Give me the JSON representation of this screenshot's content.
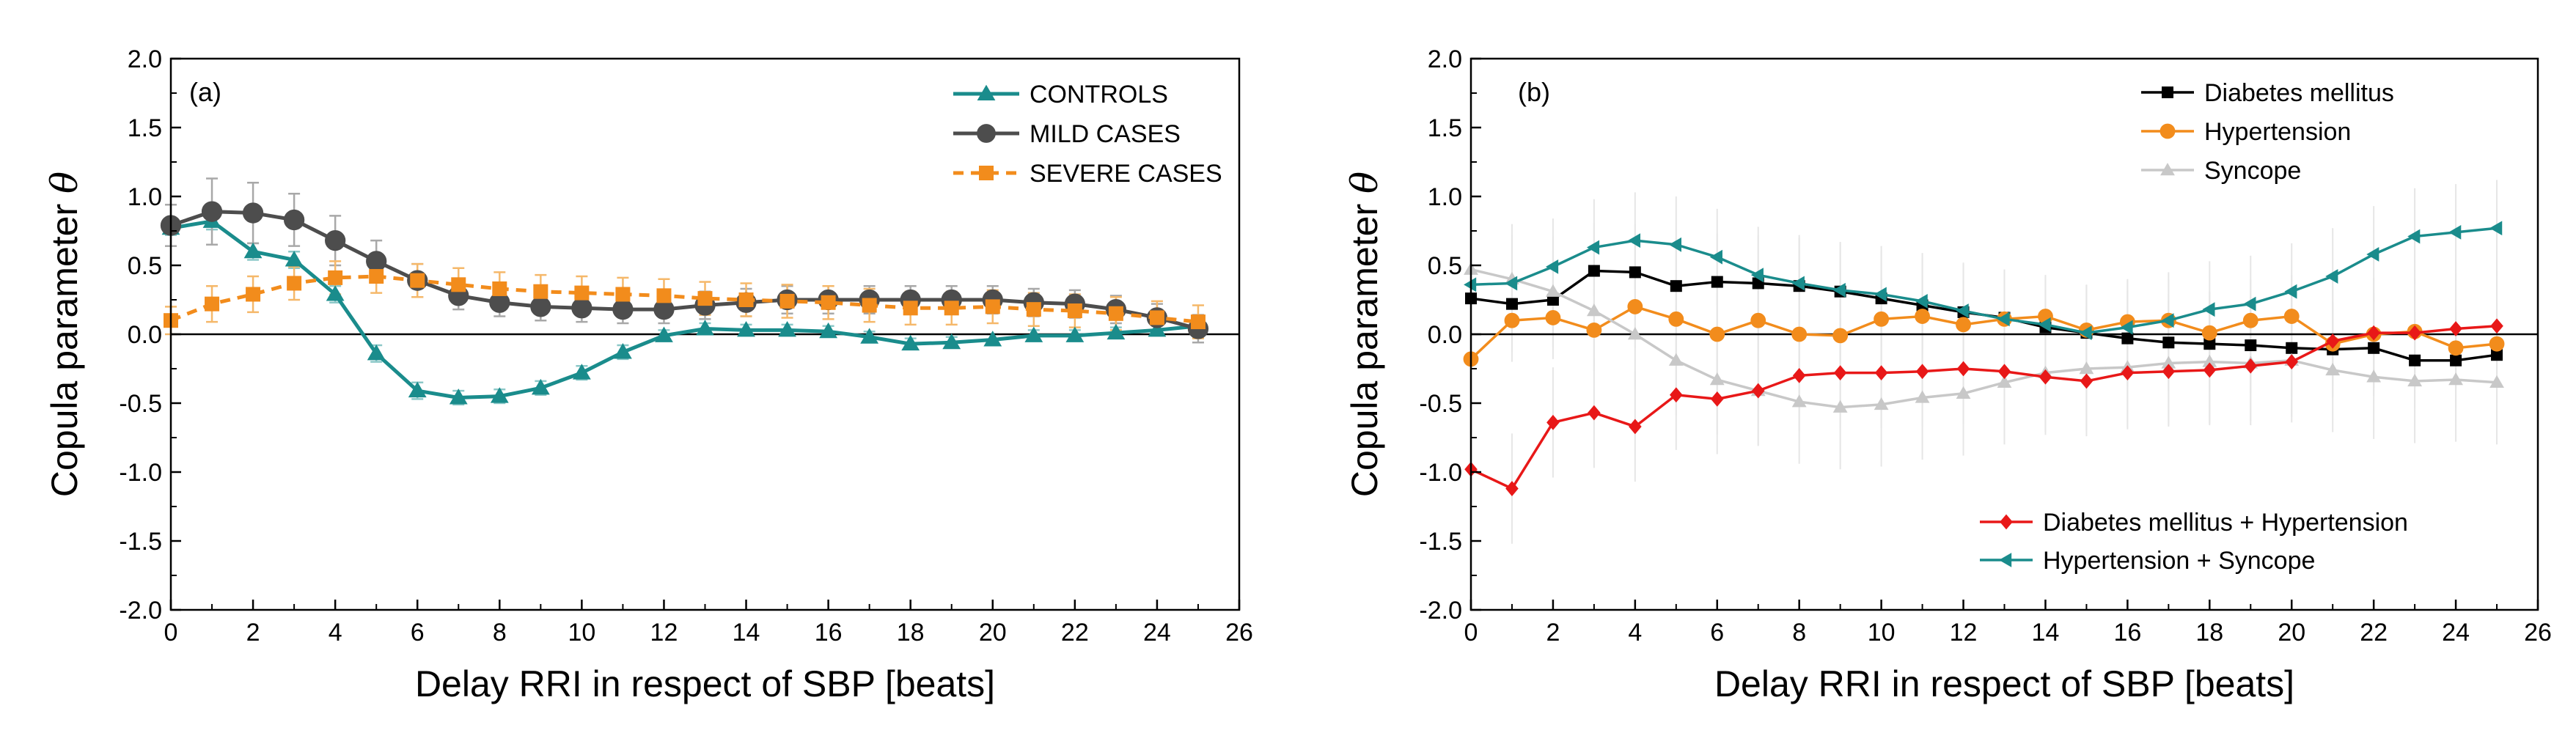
{
  "chart_data": [
    {
      "type": "line",
      "panel_label": "(a)",
      "xlabel": "Delay RRI in respect of SBP [beats]",
      "ylabel": "Copula parameter",
      "ylabel_symbol": "θ",
      "xlim": [
        0,
        26
      ],
      "ylim": [
        -2.0,
        2.0
      ],
      "x_ticks": [
        0,
        2,
        4,
        6,
        8,
        10,
        12,
        14,
        16,
        18,
        20,
        22,
        24,
        26
      ],
      "y_ticks": [
        -2.0,
        -1.5,
        -1.0,
        -0.5,
        0.0,
        0.5,
        1.0,
        1.5,
        2.0
      ],
      "x_tick_labels": [
        "0",
        "2",
        "4",
        "6",
        "8",
        "10",
        "12",
        "14",
        "16",
        "18",
        "20",
        "22",
        "24",
        "26"
      ],
      "y_tick_labels": [
        "-2.0",
        "-1.5",
        "-1.0",
        "-0.5",
        "0.0",
        "0.5",
        "1.0",
        "1.5",
        "2.0"
      ],
      "zero_line": true,
      "legend_position": "top-right",
      "series": [
        {
          "name": "CONTROLS",
          "color": "#1a8c8c",
          "marker": "triangle-up",
          "dash": "solid",
          "x": [
            0,
            1,
            2,
            3,
            4,
            5,
            6,
            7,
            8,
            9,
            10,
            11,
            12,
            13,
            14,
            15,
            16,
            17,
            18,
            19,
            20,
            21,
            22,
            23,
            24,
            25
          ],
          "values": [
            0.77,
            0.82,
            0.6,
            0.54,
            0.29,
            -0.14,
            -0.41,
            -0.46,
            -0.45,
            -0.39,
            -0.28,
            -0.13,
            -0.01,
            0.04,
            0.03,
            0.03,
            0.02,
            -0.02,
            -0.07,
            -0.06,
            -0.04,
            -0.01,
            -0.01,
            0.01,
            0.03,
            0.06
          ],
          "errors": [
            0.05,
            0.06,
            0.06,
            0.06,
            0.06,
            0.06,
            0.06,
            0.05,
            0.05,
            0.05,
            0.05,
            0.05,
            0.04,
            0.04,
            0.04,
            0.04,
            0.04,
            0.04,
            0.04,
            0.04,
            0.04,
            0.04,
            0.04,
            0.04,
            0.04,
            0.04
          ]
        },
        {
          "name": "MILD CASES",
          "color": "#4d4d4d",
          "marker": "circle",
          "dash": "solid",
          "x": [
            0,
            1,
            2,
            3,
            4,
            5,
            6,
            7,
            8,
            9,
            10,
            11,
            12,
            13,
            14,
            15,
            16,
            17,
            18,
            19,
            20,
            21,
            22,
            23,
            24,
            25
          ],
          "values": [
            0.79,
            0.89,
            0.88,
            0.83,
            0.68,
            0.53,
            0.39,
            0.28,
            0.23,
            0.2,
            0.19,
            0.18,
            0.18,
            0.21,
            0.23,
            0.25,
            0.25,
            0.25,
            0.25,
            0.25,
            0.25,
            0.23,
            0.22,
            0.18,
            0.12,
            0.04
          ],
          "errors": [
            0.15,
            0.24,
            0.22,
            0.19,
            0.18,
            0.15,
            0.12,
            0.1,
            0.1,
            0.1,
            0.1,
            0.1,
            0.1,
            0.1,
            0.1,
            0.1,
            0.1,
            0.1,
            0.1,
            0.1,
            0.1,
            0.1,
            0.1,
            0.1,
            0.1,
            0.1
          ]
        },
        {
          "name": "SEVERE CASES",
          "color": "#f28c1c",
          "marker": "square",
          "dash": "dashed",
          "x": [
            0,
            1,
            2,
            3,
            4,
            5,
            6,
            7,
            8,
            9,
            10,
            11,
            12,
            13,
            14,
            15,
            16,
            17,
            18,
            19,
            20,
            21,
            22,
            23,
            24,
            25
          ],
          "values": [
            0.1,
            0.22,
            0.29,
            0.37,
            0.41,
            0.42,
            0.39,
            0.36,
            0.33,
            0.31,
            0.3,
            0.29,
            0.28,
            0.26,
            0.25,
            0.24,
            0.23,
            0.21,
            0.19,
            0.19,
            0.2,
            0.18,
            0.17,
            0.15,
            0.12,
            0.09
          ],
          "errors": [
            0.1,
            0.13,
            0.13,
            0.12,
            0.12,
            0.12,
            0.12,
            0.12,
            0.12,
            0.12,
            0.12,
            0.12,
            0.12,
            0.12,
            0.12,
            0.12,
            0.12,
            0.12,
            0.12,
            0.12,
            0.12,
            0.12,
            0.12,
            0.12,
            0.12,
            0.12
          ]
        }
      ]
    },
    {
      "type": "line",
      "panel_label": "(b)",
      "xlabel": "Delay RRI in respect of SBP [beats]",
      "ylabel": "Copula parameter",
      "ylabel_symbol": "θ",
      "xlim": [
        0,
        26
      ],
      "ylim": [
        -2.0,
        2.0
      ],
      "x_ticks": [
        0,
        2,
        4,
        6,
        8,
        10,
        12,
        14,
        16,
        18,
        20,
        22,
        24,
        26
      ],
      "y_ticks": [
        -2.0,
        -1.5,
        -1.0,
        -0.5,
        0.0,
        0.5,
        1.0,
        1.5,
        2.0
      ],
      "x_tick_labels": [
        "0",
        "2",
        "4",
        "6",
        "8",
        "10",
        "12",
        "14",
        "16",
        "18",
        "20",
        "22",
        "24",
        "26"
      ],
      "y_tick_labels": [
        "-2.0",
        "-1.5",
        "-1.0",
        "-0.5",
        "0.0",
        "0.5",
        "1.0",
        "1.5",
        "2.0"
      ],
      "zero_line": true,
      "legend_position": "top-right and bottom-right",
      "series": [
        {
          "name": "Diabetes mellitus",
          "color": "#000000",
          "marker": "square",
          "dash": "solid",
          "legend_group": "top",
          "x": [
            0,
            1,
            2,
            3,
            4,
            5,
            6,
            7,
            8,
            9,
            10,
            11,
            12,
            13,
            14,
            15,
            16,
            17,
            18,
            19,
            20,
            21,
            22,
            23,
            24,
            25
          ],
          "values": [
            0.26,
            0.22,
            0.25,
            0.46,
            0.45,
            0.35,
            0.38,
            0.37,
            0.35,
            0.31,
            0.26,
            0.21,
            0.16,
            0.12,
            0.05,
            0.01,
            -0.03,
            -0.06,
            -0.07,
            -0.08,
            -0.1,
            -0.11,
            -0.1,
            -0.19,
            -0.19,
            -0.15
          ],
          "errors": [
            0.35,
            0.35,
            0.35,
            0.35,
            0.35,
            0.35,
            0.35,
            0.35,
            0.35,
            0.35,
            0.35,
            0.35,
            0.35,
            0.35,
            0.35,
            0.35,
            0.35,
            0.35,
            0.35,
            0.35,
            0.35,
            0.35,
            0.35,
            0.35,
            0.35,
            0.35
          ]
        },
        {
          "name": "Hypertension",
          "color": "#f28c1c",
          "marker": "circle",
          "dash": "solid",
          "legend_group": "top",
          "x": [
            0,
            1,
            2,
            3,
            4,
            5,
            6,
            7,
            8,
            9,
            10,
            11,
            12,
            13,
            14,
            15,
            16,
            17,
            18,
            19,
            20,
            21,
            22,
            23,
            24,
            25
          ],
          "values": [
            -0.18,
            0.1,
            0.12,
            0.03,
            0.2,
            0.11,
            0.0,
            0.1,
            0.0,
            -0.01,
            0.11,
            0.13,
            0.07,
            0.11,
            0.13,
            0.03,
            0.09,
            0.1,
            0.01,
            0.1,
            0.13,
            -0.07,
            0.0,
            0.02,
            -0.1,
            -0.07
          ],
          "errors": [
            0.3,
            0.3,
            0.3,
            0.3,
            0.3,
            0.3,
            0.3,
            0.3,
            0.3,
            0.3,
            0.3,
            0.3,
            0.3,
            0.3,
            0.3,
            0.3,
            0.3,
            0.3,
            0.3,
            0.3,
            0.3,
            0.3,
            0.3,
            0.3,
            0.3,
            0.3
          ]
        },
        {
          "name": "Syncope",
          "color": "#c8c8c8",
          "marker": "triangle-up",
          "dash": "solid",
          "legend_group": "top",
          "x": [
            0,
            1,
            2,
            3,
            4,
            5,
            6,
            7,
            8,
            9,
            10,
            11,
            12,
            13,
            14,
            15,
            16,
            17,
            18,
            19,
            20,
            21,
            22,
            23,
            24,
            25
          ],
          "values": [
            0.47,
            0.4,
            0.31,
            0.17,
            0.0,
            -0.19,
            -0.33,
            -0.41,
            -0.49,
            -0.53,
            -0.51,
            -0.46,
            -0.43,
            -0.35,
            -0.28,
            -0.25,
            -0.24,
            -0.21,
            -0.2,
            -0.21,
            -0.19,
            -0.26,
            -0.31,
            -0.34,
            -0.33,
            -0.35
          ],
          "errors": [
            0.35,
            0.4,
            0.4,
            0.4,
            0.4,
            0.4,
            0.4,
            0.4,
            0.45,
            0.45,
            0.45,
            0.45,
            0.45,
            0.45,
            0.45,
            0.45,
            0.45,
            0.45,
            0.45,
            0.45,
            0.45,
            0.45,
            0.45,
            0.45,
            0.45,
            0.45
          ]
        },
        {
          "name": "Diabetes mellitus + Hypertension",
          "color": "#e81818",
          "marker": "diamond",
          "dash": "solid",
          "legend_group": "bottom",
          "x": [
            0,
            1,
            2,
            3,
            4,
            5,
            6,
            7,
            8,
            9,
            10,
            11,
            12,
            13,
            14,
            15,
            16,
            17,
            18,
            19,
            20,
            21,
            22,
            23,
            24,
            25
          ],
          "values": [
            -0.98,
            -1.12,
            -0.64,
            -0.57,
            -0.67,
            -0.44,
            -0.47,
            -0.41,
            -0.3,
            -0.28,
            -0.28,
            -0.27,
            -0.25,
            -0.27,
            -0.31,
            -0.34,
            -0.28,
            -0.27,
            -0.26,
            -0.23,
            -0.2,
            -0.05,
            0.01,
            0.01,
            0.04,
            0.06
          ],
          "errors": [
            0.4,
            0.4,
            0.4,
            0.4,
            0.4,
            0.4,
            0.4,
            0.4,
            0.4,
            0.4,
            0.4,
            0.4,
            0.4,
            0.4,
            0.4,
            0.4,
            0.4,
            0.4,
            0.4,
            0.4,
            0.4,
            0.4,
            0.4,
            0.4,
            0.4,
            0.4
          ]
        },
        {
          "name": "Hypertension + Syncope",
          "color": "#1a8c8c",
          "marker": "triangle-left",
          "dash": "solid",
          "legend_group": "bottom",
          "x": [
            0,
            1,
            2,
            3,
            4,
            5,
            6,
            7,
            8,
            9,
            10,
            11,
            12,
            13,
            14,
            15,
            16,
            17,
            18,
            19,
            20,
            21,
            22,
            23,
            24,
            25
          ],
          "values": [
            0.36,
            0.37,
            0.49,
            0.63,
            0.68,
            0.65,
            0.56,
            0.43,
            0.37,
            0.32,
            0.29,
            0.24,
            0.17,
            0.11,
            0.07,
            0.01,
            0.05,
            0.1,
            0.18,
            0.22,
            0.31,
            0.42,
            0.58,
            0.71,
            0.74,
            0.77
          ],
          "errors": [
            0.35,
            0.35,
            0.35,
            0.35,
            0.35,
            0.35,
            0.35,
            0.35,
            0.35,
            0.35,
            0.35,
            0.35,
            0.35,
            0.35,
            0.35,
            0.35,
            0.35,
            0.35,
            0.35,
            0.35,
            0.35,
            0.35,
            0.35,
            0.35,
            0.35,
            0.35
          ]
        }
      ]
    }
  ]
}
